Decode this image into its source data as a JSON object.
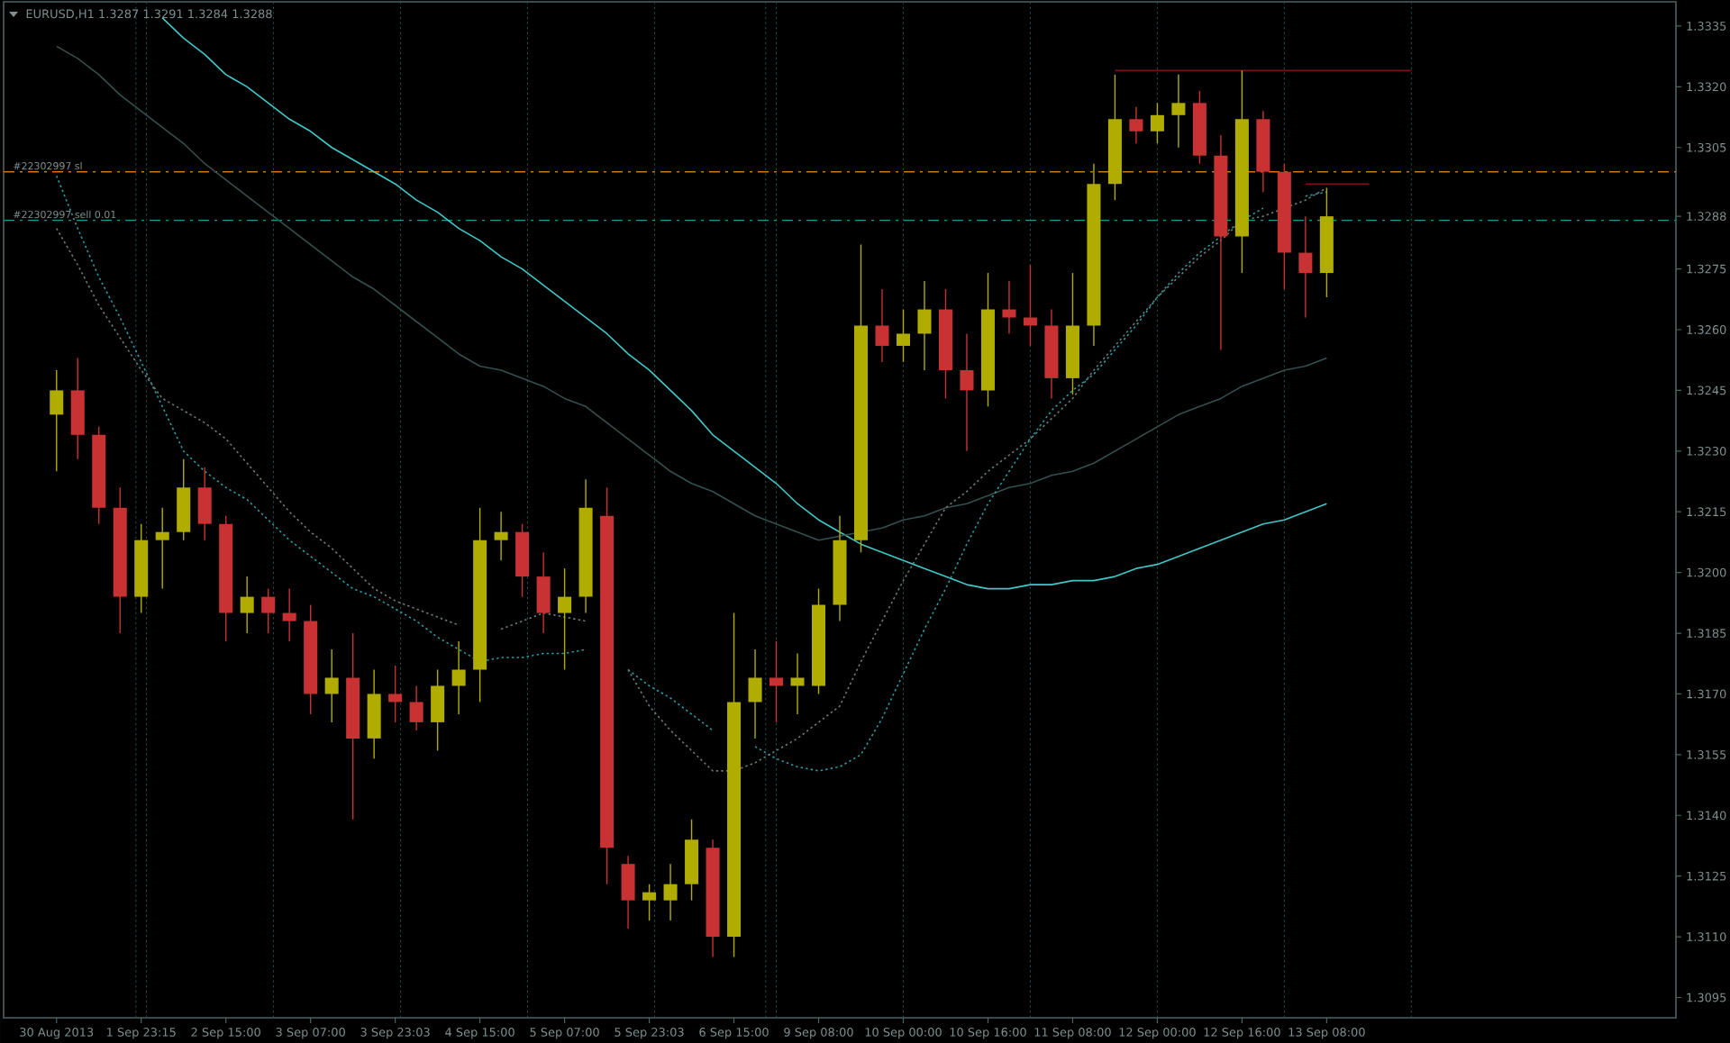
{
  "chart_data": {
    "type": "candlestick",
    "title": "EURUSD,H1  1.3287 1.3291 1.3284 1.3288",
    "categories": [
      "30 Aug 2013",
      null,
      null,
      null,
      "1 Sep 23:15",
      null,
      null,
      null,
      "2 Sep 15:00",
      null,
      null,
      null,
      "3 Sep 07:00",
      null,
      null,
      null,
      "3 Sep 23:03",
      null,
      null,
      null,
      "4 Sep 15:00",
      null,
      null,
      null,
      "5 Sep 07:00",
      null,
      null,
      null,
      "5 Sep 23:03",
      null,
      null,
      null,
      "6 Sep 15:00",
      null,
      null,
      null,
      "9 Sep 08:00",
      null,
      null,
      null,
      "10 Sep 00:00",
      null,
      null,
      null,
      "10 Sep 16:00",
      null,
      null,
      null,
      "11 Sep 08:00",
      null,
      null,
      null,
      "12 Sep 00:00",
      null,
      null,
      null,
      "12 Sep 16:00",
      null,
      null,
      null,
      "13 Sep 08:00",
      null,
      null,
      null,
      null,
      null,
      null,
      null,
      null,
      null,
      null,
      null,
      null,
      null,
      null,
      null,
      null
    ],
    "ylim": [
      1.309,
      1.3341
    ],
    "grid": "x",
    "yticks": [
      1.3095,
      {
        "value": 1.311,
        "label": "1.3110"
      },
      1.3125,
      {
        "value": 1.314,
        "label": "1.3140"
      },
      1.3155,
      {
        "value": 1.317,
        "label": "1.3170"
      },
      1.3185,
      {
        "value": 1.32,
        "label": "1.3200"
      },
      1.3215,
      {
        "value": 1.323,
        "label": "1.3230"
      },
      1.3245,
      {
        "value": 1.326,
        "label": "1.3260"
      },
      1.3275,
      {
        "value": 1.3288,
        "label": "1.3288"
      },
      1.3305,
      {
        "value": 1.332,
        "label": "1.3320"
      },
      1.3335
    ],
    "ref_lines": [
      {
        "axis": "y",
        "value": 1.3299,
        "label": "#22302997 sl",
        "color": "#c87814",
        "line_style": "dashed"
      },
      {
        "axis": "y",
        "value": 1.3287,
        "label": "#22302997 sell 0.01",
        "color": "#1e9696",
        "line_style": "dashed"
      }
    ],
    "series": [
      {
        "type": "line",
        "color": "#40c8c8",
        "line_style": "solid",
        "values": [
          null,
          null,
          null,
          null,
          null,
          1.3337,
          1.3332,
          1.3328,
          1.3323,
          1.332,
          1.3316,
          1.3312,
          1.3309,
          1.3305,
          1.3302,
          1.3299,
          1.3296,
          1.3292,
          1.3289,
          1.3285,
          1.3282,
          1.3278,
          1.3275,
          1.3271,
          1.3267,
          1.3263,
          1.3259,
          1.3254,
          1.325,
          1.3245,
          1.324,
          1.3234,
          1.323,
          1.3226,
          1.3222,
          1.3217,
          1.3213,
          1.321,
          1.3207,
          1.3205,
          1.3203,
          1.3201,
          1.3199,
          1.3197,
          1.3196,
          1.3196,
          1.3197,
          1.3197,
          1.3198,
          1.3198,
          1.3199,
          1.3201,
          1.3202,
          1.3204,
          1.3206,
          1.3208,
          1.321,
          1.3212,
          1.3213,
          1.3215,
          1.3217,
          null,
          null,
          null,
          null,
          null,
          null,
          null,
          null,
          null,
          null,
          null,
          null,
          null,
          null,
          null,
          null
        ]
      },
      {
        "type": "line",
        "color": "#34504e",
        "line_style": "solid",
        "values": [
          1.333,
          1.3327,
          1.3323,
          1.3318,
          1.3314,
          1.331,
          1.3306,
          1.3301,
          1.3297,
          1.3293,
          1.3289,
          1.3285,
          1.3281,
          1.3277,
          1.3273,
          1.327,
          1.3266,
          1.3262,
          1.3258,
          1.3254,
          1.3251,
          1.325,
          1.3248,
          1.3246,
          1.3243,
          1.3241,
          1.3237,
          1.3233,
          1.3229,
          1.3225,
          1.3222,
          1.322,
          1.3217,
          1.3214,
          1.3212,
          1.321,
          1.3208,
          1.3209,
          1.321,
          1.3211,
          1.3213,
          1.3214,
          1.3216,
          1.3217,
          1.3219,
          1.3221,
          1.3222,
          1.3224,
          1.3225,
          1.3227,
          1.323,
          1.3233,
          1.3236,
          1.3239,
          1.3241,
          1.3243,
          1.3246,
          1.3248,
          1.325,
          1.3251,
          1.3253,
          null,
          null,
          null,
          null,
          null,
          null,
          null,
          null,
          null,
          null,
          null,
          null,
          null,
          null,
          null,
          null
        ]
      },
      {
        "type": "line",
        "color": "#2a9aa4",
        "line_style": "dotted",
        "values": [
          1.3298,
          1.3285,
          1.3273,
          1.3263,
          1.3252,
          1.3241,
          1.323,
          1.3225,
          1.3221,
          1.3218,
          1.3213,
          1.3208,
          1.3204,
          1.32,
          1.3196,
          1.3194,
          1.3191,
          1.3188,
          1.3184,
          1.3181,
          1.3178,
          1.3179,
          1.3179,
          1.318,
          1.318,
          1.3181,
          null,
          1.3176,
          1.3172,
          1.3169,
          1.3165,
          1.3161,
          null,
          1.3157,
          1.3154,
          1.3152,
          1.3151,
          1.3152,
          1.3155,
          1.3164,
          1.3175,
          1.3186,
          1.3196,
          1.3207,
          1.3217,
          1.3225,
          1.3233,
          1.324,
          1.3245,
          1.3249,
          1.3255,
          1.3261,
          1.3268,
          1.3274,
          1.3279,
          1.3283,
          1.3287,
          1.329,
          null,
          1.3293,
          1.3294,
          null,
          null,
          null,
          null,
          null,
          null,
          null,
          null,
          null,
          null,
          null,
          null,
          null,
          null,
          null,
          null
        ]
      },
      {
        "type": "line",
        "color": "#6a7a7a",
        "line_style": "dotted",
        "values": [
          1.3285,
          1.3276,
          1.3266,
          1.3258,
          1.325,
          1.3243,
          1.324,
          1.3237,
          1.3233,
          1.3227,
          1.3221,
          1.3215,
          1.321,
          1.3206,
          1.3201,
          1.3196,
          1.3193,
          1.3191,
          1.3189,
          1.3187,
          null,
          1.3186,
          1.3188,
          1.319,
          1.3189,
          1.3188,
          null,
          1.3176,
          1.3167,
          1.3161,
          1.3156,
          1.3151,
          1.3151,
          1.3153,
          1.3156,
          1.3159,
          1.3163,
          1.3167,
          1.3178,
          1.3188,
          1.3198,
          1.3207,
          1.3216,
          1.322,
          1.3225,
          1.3229,
          1.3233,
          1.3238,
          1.3243,
          1.325,
          1.3256,
          1.3262,
          1.3268,
          1.3273,
          1.3278,
          1.3282,
          1.3287,
          1.3288,
          1.329,
          1.3292,
          1.3295,
          null,
          null,
          null,
          null,
          null,
          null,
          null,
          null,
          null,
          null,
          null,
          null,
          null,
          null,
          null,
          null
        ]
      },
      {
        "type": "line",
        "color": "#7a1414",
        "line_style": "solid",
        "values": [
          null,
          null,
          null,
          null,
          null,
          null,
          null,
          null,
          null,
          null,
          null,
          null,
          null,
          null,
          null,
          null,
          null,
          null,
          null,
          null,
          null,
          null,
          null,
          null,
          null,
          null,
          null,
          null,
          null,
          null,
          null,
          null,
          null,
          null,
          null,
          null,
          null,
          null,
          null,
          null,
          null,
          null,
          null,
          null,
          null,
          null,
          null,
          null,
          null,
          null,
          1.3324,
          1.3324,
          1.3324,
          1.3324,
          1.3324,
          1.3324,
          1.3324,
          1.3324,
          1.3324,
          1.3324,
          1.3324,
          1.3324,
          1.3324,
          1.3324,
          1.3324,
          null,
          null,
          null,
          null,
          null,
          null,
          null,
          null,
          null,
          null,
          null,
          null
        ]
      },
      {
        "type": "line",
        "color": "#7a1414",
        "line_style": "solid",
        "values": [
          null,
          null,
          null,
          null,
          null,
          null,
          null,
          null,
          null,
          null,
          null,
          null,
          null,
          null,
          null,
          null,
          null,
          null,
          null,
          null,
          null,
          null,
          null,
          null,
          null,
          null,
          null,
          null,
          null,
          null,
          null,
          null,
          null,
          null,
          null,
          null,
          null,
          null,
          null,
          null,
          null,
          null,
          null,
          null,
          null,
          null,
          null,
          null,
          null,
          null,
          null,
          null,
          null,
          null,
          null,
          null,
          null,
          null,
          null,
          1.3296,
          1.3296,
          1.3296,
          1.3296,
          null,
          null,
          null,
          null,
          null,
          null,
          null,
          null,
          null,
          null,
          null,
          null,
          null,
          null
        ]
      },
      {
        "ohlc": [
          [
            1.3239,
            1.325,
            1.3225,
            1.3245
          ],
          [
            1.3245,
            1.3253,
            1.3228,
            1.3234
          ],
          [
            1.3234,
            1.3236,
            1.3212,
            1.3216
          ],
          [
            1.3216,
            1.3221,
            1.3185,
            1.3194
          ],
          [
            1.3194,
            1.3212,
            1.319,
            1.3208
          ],
          [
            1.3208,
            1.3216,
            1.3196,
            1.321
          ],
          [
            1.321,
            1.3228,
            1.3208,
            1.3221
          ],
          [
            1.3221,
            1.3226,
            1.3208,
            1.3212
          ],
          [
            1.3212,
            1.3214,
            1.3183,
            1.319
          ],
          [
            1.319,
            1.3199,
            1.3185,
            1.3194
          ],
          [
            1.3194,
            1.3196,
            1.3185,
            1.319
          ],
          [
            1.319,
            1.3196,
            1.3183,
            1.3188
          ],
          [
            1.3188,
            1.3192,
            1.3165,
            1.317
          ],
          [
            1.317,
            1.3181,
            1.3163,
            1.3174
          ],
          [
            1.3174,
            1.3185,
            1.3139,
            1.3159
          ],
          [
            1.3159,
            1.3176,
            1.3154,
            1.317
          ],
          [
            1.317,
            1.3177,
            1.3163,
            1.3168
          ],
          [
            1.3168,
            1.3172,
            1.3161,
            1.3163
          ],
          [
            1.3163,
            1.3176,
            1.3156,
            1.3172
          ],
          [
            1.3172,
            1.3183,
            1.3165,
            1.3176
          ],
          [
            1.3176,
            1.3216,
            1.3168,
            1.3208
          ],
          [
            1.3208,
            1.3215,
            1.3203,
            1.321
          ],
          [
            1.321,
            1.3212,
            1.3194,
            1.3199
          ],
          [
            1.3199,
            1.3205,
            1.3185,
            1.319
          ],
          [
            1.319,
            1.3201,
            1.3176,
            1.3194
          ],
          [
            1.3194,
            1.3223,
            1.319,
            1.3216
          ],
          [
            1.3214,
            1.3221,
            1.3123,
            1.3132
          ],
          [
            1.3128,
            1.313,
            1.3112,
            1.3119
          ],
          [
            1.3119,
            1.3123,
            1.3114,
            1.3121
          ],
          [
            1.3119,
            1.3128,
            1.3114,
            1.3123
          ],
          [
            1.3123,
            1.3139,
            1.3119,
            1.3134
          ],
          [
            1.3132,
            1.3134,
            1.3105,
            1.311
          ],
          [
            1.311,
            1.319,
            1.3105,
            1.3168
          ],
          [
            1.3168,
            1.3181,
            1.3159,
            1.3174
          ],
          [
            1.3174,
            1.3183,
            1.3163,
            1.3172
          ],
          [
            1.3172,
            1.318,
            1.3165,
            1.3174
          ],
          [
            1.3172,
            1.3196,
            1.317,
            1.3192
          ],
          [
            1.3192,
            1.3214,
            1.3188,
            1.3208
          ],
          [
            1.3208,
            1.3281,
            1.3205,
            1.3261
          ],
          [
            1.3261,
            1.327,
            1.3252,
            1.3256
          ],
          [
            1.3256,
            1.3265,
            1.3252,
            1.3259
          ],
          [
            1.3259,
            1.3272,
            1.325,
            1.3265
          ],
          [
            1.3265,
            1.327,
            1.3243,
            1.325
          ],
          [
            1.325,
            1.3259,
            1.323,
            1.3245
          ],
          [
            1.3245,
            1.3274,
            1.3241,
            1.3265
          ],
          [
            1.3265,
            1.3272,
            1.3259,
            1.3263
          ],
          [
            1.3263,
            1.3276,
            1.3256,
            1.3261
          ],
          [
            1.3261,
            1.3265,
            1.3243,
            1.3248
          ],
          [
            1.3248,
            1.3274,
            1.3244,
            1.3261
          ],
          [
            1.3261,
            1.3301,
            1.3256,
            1.3296
          ],
          [
            1.3296,
            1.3323,
            1.3292,
            1.3312
          ],
          [
            1.3312,
            1.3315,
            1.3306,
            1.3309
          ],
          [
            1.3309,
            1.3316,
            1.3306,
            1.3313
          ],
          [
            1.3313,
            1.3323,
            1.3305,
            1.3316
          ],
          [
            1.3316,
            1.3319,
            1.3301,
            1.3303
          ],
          [
            1.3303,
            1.3308,
            1.3255,
            1.3283
          ],
          [
            1.3283,
            1.3324,
            1.3274,
            1.3312
          ],
          [
            1.3312,
            1.3314,
            1.3294,
            1.3299
          ],
          [
            1.3299,
            1.3301,
            1.327,
            1.3279
          ],
          [
            1.3279,
            1.3288,
            1.3263,
            1.3274
          ],
          [
            1.3274,
            1.3295,
            1.3268,
            1.3288
          ],
          null,
          null,
          null,
          null,
          null,
          null,
          null,
          null,
          null,
          null,
          null,
          null,
          null,
          null,
          null,
          null
        ],
        "colors": [
          "#b0ac00",
          "#c83232",
          "#c83232",
          "#c83232",
          "#b0ac00",
          "#b0ac00",
          "#b0ac00",
          "#c83232",
          "#c83232",
          "#b0ac00",
          "#c83232",
          "#c83232",
          "#c83232",
          "#b0ac00",
          "#c83232",
          "#b0ac00",
          "#c83232",
          "#c83232",
          "#b0ac00",
          "#b0ac00",
          "#b0ac00",
          "#b0ac00",
          "#c83232",
          "#c83232",
          "#b0ac00",
          "#b0ac00",
          "#c83232",
          "#c83232",
          "#b0ac00",
          "#b0ac00",
          "#b0ac00",
          "#c83232",
          "#b0ac00",
          "#b0ac00",
          "#c83232",
          "#b0ac00",
          "#b0ac00",
          "#b0ac00",
          "#b0ac00",
          "#c83232",
          "#b0ac00",
          "#b0ac00",
          "#c83232",
          "#c83232",
          "#b0ac00",
          "#c83232",
          "#c83232",
          "#c83232",
          "#b0ac00",
          "#b0ac00",
          "#b0ac00",
          "#c83232",
          "#b0ac00",
          "#b0ac00",
          "#c83232",
          "#c83232",
          "#b0ac00",
          "#c83232",
          "#c83232",
          "#c83232",
          "#b0ac00",
          null,
          null,
          null,
          null,
          null,
          null,
          null,
          null,
          null,
          null,
          null,
          null,
          null,
          null,
          null,
          null
        ]
      }
    ]
  }
}
